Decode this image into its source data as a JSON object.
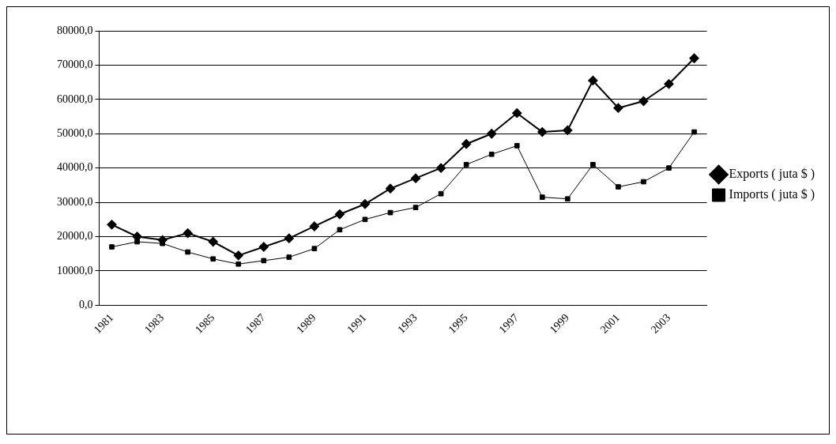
{
  "chart_data": {
    "type": "line",
    "categories": [
      "1981",
      null,
      "1983",
      null,
      "1985",
      null,
      "1987",
      null,
      "1989",
      null,
      "1991",
      null,
      "1993",
      null,
      "1995",
      null,
      "1997",
      null,
      "1999",
      null,
      "2001",
      null,
      "2003",
      null
    ],
    "series": [
      {
        "name": "Exports ( juta $ )",
        "color": "#000000",
        "marker": "diamond",
        "values": [
          23500,
          20000,
          19000,
          21000,
          18500,
          14500,
          17000,
          19500,
          23000,
          26500,
          29500,
          34000,
          37000,
          40000,
          47000,
          50000,
          56000,
          50500,
          51000,
          65500,
          57500,
          59500,
          64500,
          72000
        ]
      },
      {
        "name": "Imports ( juta $ )",
        "color": "#000000",
        "marker": "square",
        "values": [
          17000,
          18500,
          18000,
          15500,
          13500,
          12000,
          13000,
          14000,
          16500,
          22000,
          25000,
          27000,
          28500,
          32500,
          41000,
          44000,
          46500,
          31500,
          31000,
          41000,
          34500,
          36000,
          40000,
          50500
        ]
      }
    ],
    "ylim": [
      0,
      80000
    ],
    "yticks": [
      {
        "value": 0,
        "label": "0,0"
      },
      {
        "value": 10000,
        "label": "10000,0"
      },
      {
        "value": 20000,
        "label": "20000,0"
      },
      {
        "value": 30000,
        "label": "30000,0"
      },
      {
        "value": 40000,
        "label": "40000,0"
      },
      {
        "value": 50000,
        "label": "50000,0"
      },
      {
        "value": 60000,
        "label": "60000,0"
      },
      {
        "value": 70000,
        "label": "70000,0"
      },
      {
        "value": 80000,
        "label": "80000,0"
      }
    ],
    "grid": "y",
    "legend": "right"
  }
}
